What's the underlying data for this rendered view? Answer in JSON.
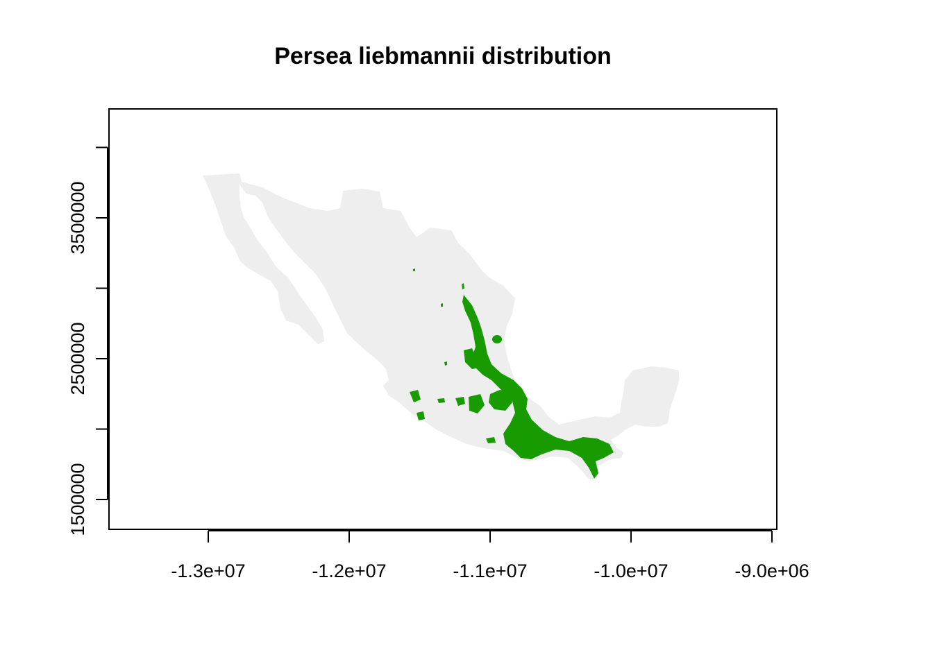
{
  "chart_data": {
    "type": "map",
    "title": "Persea liebmannii distribution",
    "xlabel": "",
    "ylabel": "",
    "x_ticks": [
      -13000000,
      -12000000,
      -11000000,
      -10000000,
      -9000000
    ],
    "x_tick_labels": [
      "-1.3e+07",
      "-1.2e+07",
      "-1.1e+07",
      "-1.0e+07",
      "-9.0e+06"
    ],
    "y_ticks": [
      1500000,
      2000000,
      2500000,
      3000000,
      3500000,
      4000000
    ],
    "y_tick_labels": [
      "1500000",
      "",
      "2500000",
      "",
      "3500000",
      ""
    ],
    "xlim": [
      -13700000,
      -8950000
    ],
    "ylim": [
      1300000,
      4300000
    ],
    "layers": [
      {
        "name": "Mexico",
        "color": "#eeeeee"
      },
      {
        "name": "Persea liebmannii",
        "color": "#179b00"
      }
    ],
    "grid": false,
    "legend": "none"
  }
}
